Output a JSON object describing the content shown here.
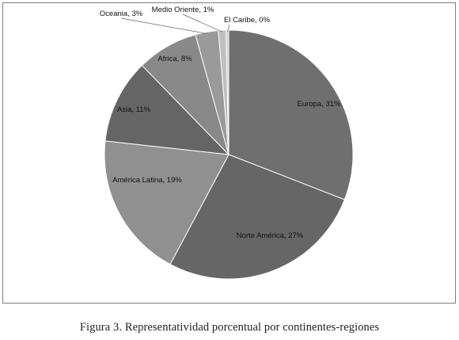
{
  "chart_data": {
    "type": "pie",
    "categories": [
      "Europa",
      "Norte América",
      "América Latina",
      "Asia",
      "Africa",
      "Oceania",
      "Medio Oriente",
      "El Caribe"
    ],
    "values": [
      31,
      27,
      19,
      11,
      8,
      3,
      1,
      0
    ],
    "data_labels": [
      "Europa, 31%",
      "Norte América, 27%",
      "América Latina, 19%",
      "Asia, 11%",
      "Africa, 8%",
      "Oceania, 3%",
      "Medio Oriente, 1%",
      "El Caribe, 0%"
    ],
    "unit": "%",
    "legend": "none",
    "colors": [
      "#6f6f6f",
      "#666666",
      "#909090",
      "#656565",
      "#898989",
      "#9a9a9a",
      "#bfbfbf",
      "#cccccc"
    ],
    "edge_color": "#ffffff"
  },
  "caption": {
    "label": "Figura 3.",
    "text": "Representatividad porcentual por continentes-regiones"
  }
}
